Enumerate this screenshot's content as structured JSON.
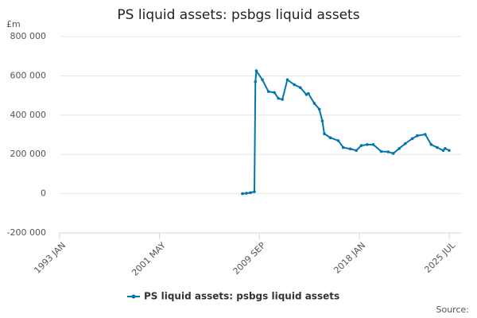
{
  "chart_data": {
    "type": "line",
    "title": "PS liquid assets: psbgs liquid assets",
    "y_unit": "£m",
    "source": "Source:",
    "x": [
      "2008 APR",
      "2008 AUG",
      "2008 DEC",
      "2009 APR",
      "2009 MAY",
      "2009 JUN",
      "2009 DEC",
      "2010 JUN",
      "2010 DEC",
      "2011 APR",
      "2011 AUG",
      "2012 JAN",
      "2012 AUG",
      "2013 FEB",
      "2013 AUG",
      "2013 OCT",
      "2014 APR",
      "2014 SEP",
      "2014 DEC",
      "2015 FEB",
      "2015 AUG",
      "2016 APR",
      "2016 SEP",
      "2017 APR",
      "2017 OCT",
      "2018 MAR",
      "2018 SEP",
      "2019 MAR",
      "2019 NOV",
      "2020 JUN",
      "2020 NOV",
      "2021 MAY",
      "2021 NOV",
      "2022 JUN",
      "2022 NOV",
      "2023 JUL",
      "2024 JAN",
      "2024 JUL",
      "2025 JAN",
      "2025 MAR",
      "2025 JUL"
    ],
    "series": [
      {
        "name": "PS liquid assets: psbgs liquid assets",
        "color": "#0075b0",
        "values": [
          0,
          2000,
          5000,
          10000,
          570000,
          625000,
          580000,
          520000,
          515000,
          485000,
          480000,
          580000,
          555000,
          540000,
          505000,
          510000,
          460000,
          430000,
          370000,
          305000,
          285000,
          270000,
          235000,
          228000,
          220000,
          245000,
          250000,
          250000,
          215000,
          213000,
          205000,
          230000,
          255000,
          280000,
          295000,
          302000,
          250000,
          235000,
          220000,
          230000,
          220000
        ]
      }
    ],
    "xlim": [
      "1993 JAN",
      "2025 JUL"
    ],
    "xticks": [
      "1993 JAN",
      "2001 MAY",
      "2009 SEP",
      "2018 JAN",
      "2025 JUL"
    ],
    "ylim": [
      -200000,
      800000
    ],
    "yticks": [
      {
        "value": -200000,
        "label": "-200 000"
      },
      {
        "value": 0,
        "label": "0"
      },
      {
        "value": 200000,
        "label": "200 000"
      },
      {
        "value": 400000,
        "label": "400 000"
      },
      {
        "value": 600000,
        "label": "600 000"
      },
      {
        "value": 800000,
        "label": "800 000"
      }
    ],
    "grid": true
  }
}
